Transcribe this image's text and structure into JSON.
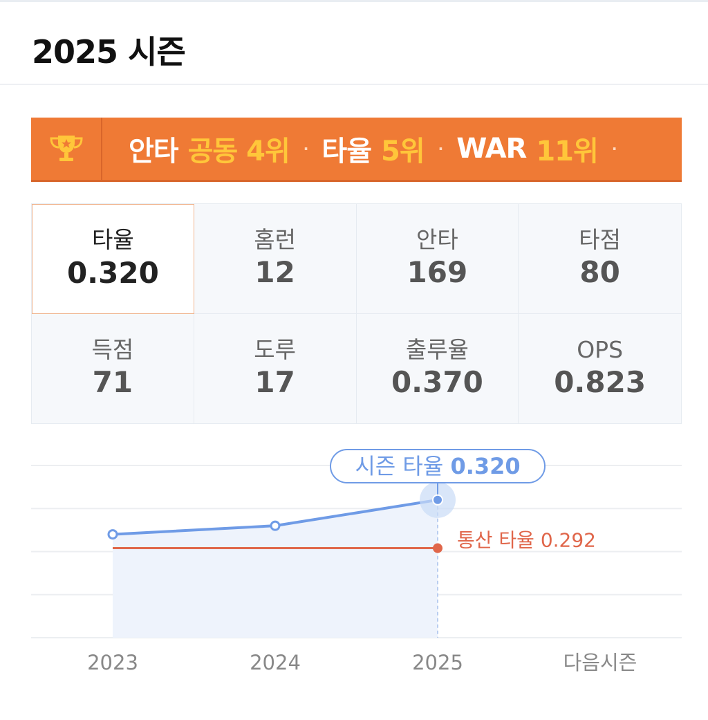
{
  "header": {
    "title": "2025 시즌"
  },
  "ranking_banner": {
    "icon": "trophy-icon",
    "items": [
      {
        "label": "안타",
        "rank": "공동 4위"
      },
      {
        "label": "타율",
        "rank": "5위"
      },
      {
        "label": "WAR",
        "rank": "11위"
      }
    ],
    "separator": "·"
  },
  "stats": [
    {
      "label": "타율",
      "value": "0.320",
      "selected": true
    },
    {
      "label": "홈런",
      "value": "12",
      "selected": false
    },
    {
      "label": "안타",
      "value": "169",
      "selected": false
    },
    {
      "label": "타점",
      "value": "80",
      "selected": false
    },
    {
      "label": "득점",
      "value": "71",
      "selected": false
    },
    {
      "label": "도루",
      "value": "17",
      "selected": false
    },
    {
      "label": "출루율",
      "value": "0.370",
      "selected": false
    },
    {
      "label": "OPS",
      "value": "0.823",
      "selected": false
    }
  ],
  "chart": {
    "season_tooltip": {
      "prefix": "시즌 타율",
      "value": "0.320"
    },
    "career_label": "통산 타율 0.292",
    "colors": {
      "season": "#6f9be6",
      "career": "#e0664a",
      "fill": "#eef3fc",
      "grid": "#eceef1",
      "axis_text": "#888888"
    }
  },
  "chart_data": {
    "type": "line",
    "categories": [
      "2023",
      "2024",
      "2025",
      "다음시즌"
    ],
    "series": [
      {
        "name": "시즌 타율",
        "values": [
          0.3,
          0.305,
          0.32,
          null
        ]
      },
      {
        "name": "통산 타율",
        "values": [
          0.292,
          0.292,
          0.292,
          null
        ]
      }
    ],
    "ylim": [
      0.24,
      0.34
    ],
    "grid": true
  }
}
